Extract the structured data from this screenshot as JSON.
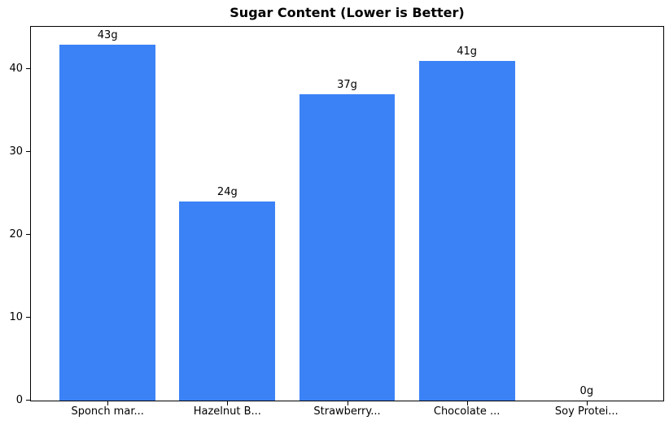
{
  "chart_data": {
    "type": "bar",
    "title": "Sugar Content (Lower is Better)",
    "categories": [
      "Sponch mar...",
      "Hazelnut B...",
      "Strawberry...",
      "Chocolate ...",
      "Soy Protei..."
    ],
    "values": [
      43,
      24,
      37,
      41,
      0
    ],
    "bar_labels": [
      "43g",
      "24g",
      "37g",
      "41g",
      "0g"
    ],
    "yticks": [
      0,
      10,
      20,
      30,
      40
    ],
    "ylim": [
      0,
      45.15
    ],
    "xlabel": "",
    "ylabel": "",
    "bar_width_fraction": 0.8,
    "grid": false,
    "legend": false,
    "bar_color": "#3b82f6",
    "text_color": "#000000",
    "spine_color": "#000000",
    "background_color": "#ffffff"
  }
}
